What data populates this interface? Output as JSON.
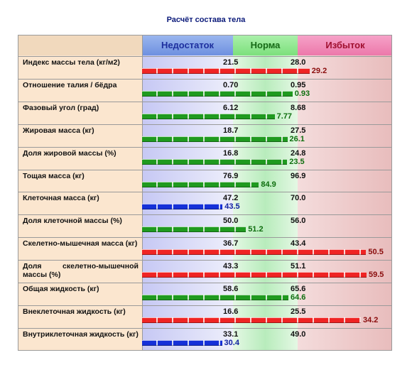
{
  "title": "Расчёт состава тела",
  "columns": {
    "deficit": "Недостаток",
    "norm": "Норма",
    "excess": "Избыток"
  },
  "colors": {
    "red": "#ef2424",
    "green": "#1f9a1f",
    "blue": "#1530d8"
  },
  "chart_data": {
    "type": "bar",
    "rows": [
      {
        "label": "Индекс массы тела (кг/м2)",
        "norm_low": "21.5",
        "norm_high": "28.0",
        "value": "29.2",
        "color": "red"
      },
      {
        "label": "Отношение талия / бёдра",
        "norm_low": "0.70",
        "norm_high": "0.95",
        "value": "0.93",
        "color": "green"
      },
      {
        "label": "Фазовый угол (град)",
        "norm_low": "6.12",
        "norm_high": "8.68",
        "value": "7.77",
        "color": "green"
      },
      {
        "label": "Жировая масса (кг)",
        "norm_low": "18.7",
        "norm_high": "27.5",
        "value": "26.1",
        "color": "green"
      },
      {
        "label": "Доля жировой массы (%)",
        "norm_low": "16.8",
        "norm_high": "24.8",
        "value": "23.5",
        "color": "green"
      },
      {
        "label": "Тощая масса (кг)",
        "norm_low": "76.9",
        "norm_high": "96.9",
        "value": "84.9",
        "color": "green"
      },
      {
        "label": "Клеточная масса (кг)",
        "norm_low": "47.2",
        "norm_high": "70.0",
        "value": "43.5",
        "color": "blue"
      },
      {
        "label": "Доля клеточной массы (%)",
        "norm_low": "50.0",
        "norm_high": "56.0",
        "value": "51.2",
        "color": "green"
      },
      {
        "label": "Скелетно-мышечная масса (кг)",
        "norm_low": "36.7",
        "norm_high": "43.4",
        "value": "50.5",
        "color": "red"
      },
      {
        "label": "Доля скелетно-мышечной массы (%)",
        "norm_low": "43.3",
        "norm_high": "51.1",
        "value": "59.5",
        "color": "red"
      },
      {
        "label": "Общая жидкость (кг)",
        "norm_low": "58.6",
        "norm_high": "65.6",
        "value": "64.6",
        "color": "green"
      },
      {
        "label": "Внеклеточная жидкость (кг)",
        "norm_low": "16.6",
        "norm_high": "25.5",
        "value": "34.2",
        "color": "red"
      },
      {
        "label": "Внутриклеточная жидкость (кг)",
        "norm_low": "33.1",
        "norm_high": "49.0",
        "value": "30.4",
        "color": "blue"
      }
    ]
  }
}
